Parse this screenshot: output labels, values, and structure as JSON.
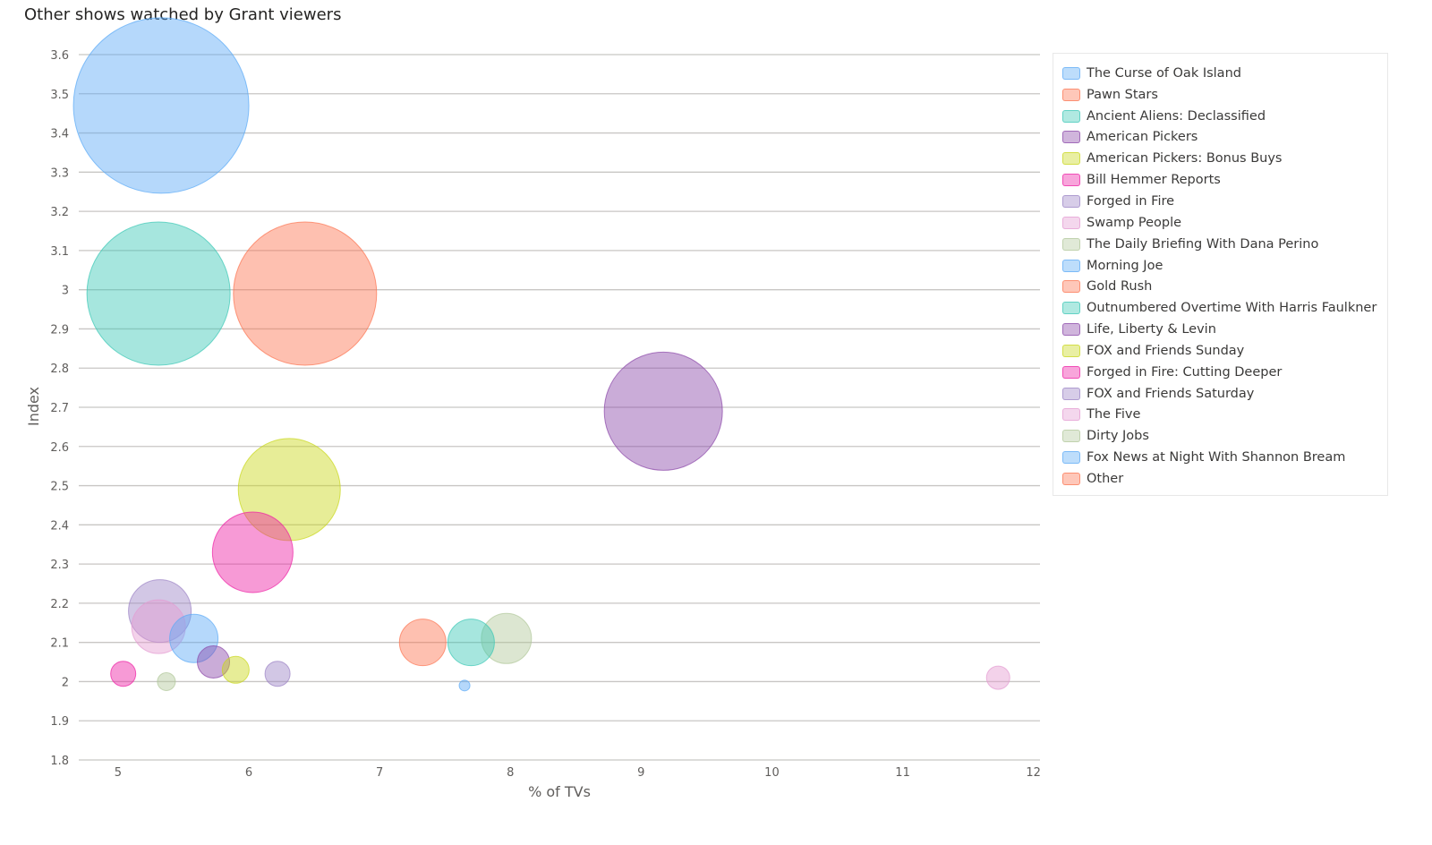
{
  "title": "Other shows watched by Grant viewers",
  "legend": [
    {
      "label": "The Curse of Oak Island",
      "color": "#5aa9f6"
    },
    {
      "label": "Pawn Stars",
      "color": "#fc7350"
    },
    {
      "label": "Ancient Aliens: Declassified",
      "color": "#3ac8b5"
    },
    {
      "label": "American Pickers",
      "color": "#8a46a8"
    },
    {
      "label": "American Pickers: Bonus Buys",
      "color": "#c9d719"
    },
    {
      "label": "Bill Hemmer Reports",
      "color": "#ee1fa4"
    },
    {
      "label": "Forged in Fire",
      "color": "#9b82c5"
    },
    {
      "label": "Swamp People",
      "color": "#e49bd1"
    },
    {
      "label": "The Daily Briefing With Dana Perino",
      "color": "#b1c79a"
    },
    {
      "label": "Morning Joe",
      "color": "#5aa9f6"
    },
    {
      "label": "Gold Rush",
      "color": "#fc7350"
    },
    {
      "label": "Outnumbered Overtime With Harris Faulkner",
      "color": "#3ac8b5"
    },
    {
      "label": "Life, Liberty & Levin",
      "color": "#8a46a8"
    },
    {
      "label": "FOX and Friends Sunday",
      "color": "#c9d719"
    },
    {
      "label": "Forged in Fire: Cutting Deeper",
      "color": "#ee1fa4"
    },
    {
      "label": "FOX and Friends Saturday",
      "color": "#9b82c5"
    },
    {
      "label": "The Five",
      "color": "#e49bd1"
    },
    {
      "label": "Dirty Jobs",
      "color": "#b1c79a"
    },
    {
      "label": "Fox News at Night With Shannon Bream",
      "color": "#5aa9f6"
    },
    {
      "label": "Other",
      "color": "#fc7350"
    }
  ],
  "chart_data": {
    "type": "scatter",
    "title": "Other shows watched by Grant viewers",
    "xlabel": "% of TVs",
    "ylabel": "Index",
    "xlim": [
      4.7,
      12.05
    ],
    "ylim": [
      1.8,
      3.6
    ],
    "xticks": [
      "5",
      "6",
      "7",
      "8",
      "9",
      "10",
      "11",
      "12"
    ],
    "yticks": [
      "1.8",
      "1.9",
      "2",
      "2.1",
      "2.2",
      "2.3",
      "2.4",
      "2.5",
      "2.6",
      "2.7",
      "2.8",
      "2.9",
      "3",
      "3.1",
      "3.2",
      "3.3",
      "3.4",
      "3.5",
      "3.6"
    ],
    "grid": true,
    "legend_position": "right",
    "bubble_size_relative": true,
    "points": [
      {
        "x": 5.33,
        "y": 3.47,
        "size": 98,
        "color": "#5aa9f6"
      },
      {
        "x": 6.43,
        "y": 2.99,
        "size": 80,
        "color": "#fc7350"
      },
      {
        "x": 5.31,
        "y": 2.99,
        "size": 80,
        "color": "#3ac8b5"
      },
      {
        "x": 9.17,
        "y": 2.69,
        "size": 66,
        "color": "#8a46a8"
      },
      {
        "x": 6.31,
        "y": 2.49,
        "size": 57,
        "color": "#c9d719"
      },
      {
        "x": 6.03,
        "y": 2.33,
        "size": 45,
        "color": "#ee1fa4"
      },
      {
        "x": 5.32,
        "y": 2.18,
        "size": 35,
        "color": "#9b82c5"
      },
      {
        "x": 5.31,
        "y": 2.14,
        "size": 30,
        "color": "#e49bd1"
      },
      {
        "x": 5.58,
        "y": 2.11,
        "size": 27,
        "color": "#5aa9f6"
      },
      {
        "x": 7.97,
        "y": 2.11,
        "size": 28,
        "color": "#b1c79a"
      },
      {
        "x": 7.33,
        "y": 2.1,
        "size": 26,
        "color": "#fc7350"
      },
      {
        "x": 7.7,
        "y": 2.1,
        "size": 26,
        "color": "#3ac8b5"
      },
      {
        "x": 5.73,
        "y": 2.05,
        "size": 18,
        "color": "#8a46a8"
      },
      {
        "x": 5.9,
        "y": 2.03,
        "size": 15,
        "color": "#c9d719"
      },
      {
        "x": 5.04,
        "y": 2.02,
        "size": 14,
        "color": "#ee1fa4"
      },
      {
        "x": 6.22,
        "y": 2.02,
        "size": 14,
        "color": "#9b82c5"
      },
      {
        "x": 11.73,
        "y": 2.01,
        "size": 13,
        "color": "#e49bd1"
      },
      {
        "x": 5.37,
        "y": 2.0,
        "size": 10,
        "color": "#b1c79a"
      },
      {
        "x": 7.65,
        "y": 1.99,
        "size": 6,
        "color": "#5aa9f6"
      }
    ]
  }
}
